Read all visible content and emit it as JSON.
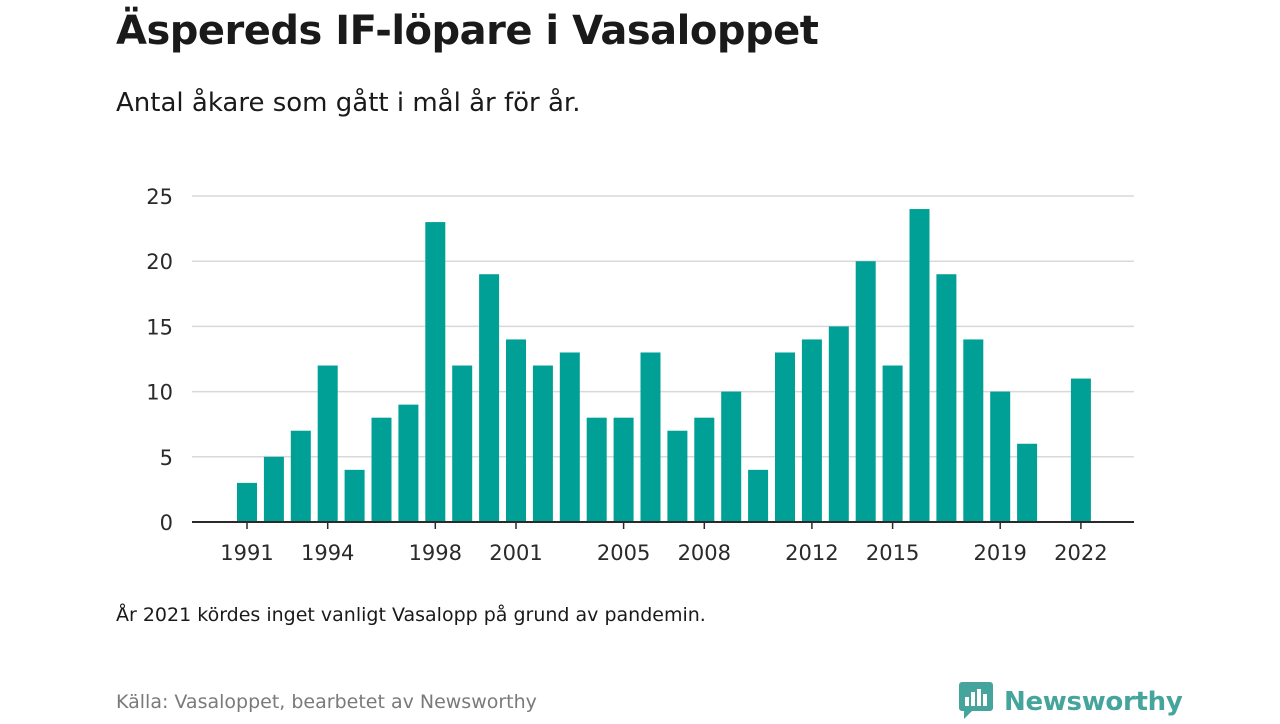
{
  "title": "Äspereds IF-löpare i Vasaloppet",
  "subtitle": "Antal åkare som gått i mål år för år.",
  "note": "År 2021 kördes inget vanligt Vasalopp på grund av pandemin.",
  "source": "Källa: Vasaloppet, bearbetet av Newsworthy",
  "brand": {
    "name": "Newsworthy",
    "icon": "newsworthy-logo-icon",
    "color": "#45a49b"
  },
  "colors": {
    "bar": "#00a097",
    "grid": "#d9d9d9",
    "axis": "#2a2a2a"
  },
  "chart_data": {
    "type": "bar",
    "title": "Äspereds IF-löpare i Vasaloppet",
    "xlabel": "",
    "ylabel": "",
    "x": [
      1991,
      1992,
      1993,
      1994,
      1995,
      1996,
      1997,
      1998,
      1999,
      2000,
      2001,
      2002,
      2003,
      2004,
      2005,
      2006,
      2007,
      2008,
      2009,
      2010,
      2011,
      2012,
      2013,
      2014,
      2015,
      2016,
      2017,
      2018,
      2019,
      2020,
      2021,
      2022
    ],
    "values": [
      3,
      5,
      7,
      12,
      4,
      8,
      9,
      23,
      12,
      19,
      14,
      12,
      13,
      8,
      8,
      13,
      7,
      8,
      10,
      4,
      13,
      14,
      15,
      20,
      12,
      24,
      19,
      14,
      10,
      6,
      null,
      11
    ],
    "x_tick_labels": [
      "1991",
      "1994",
      "1998",
      "2001",
      "2005",
      "2008",
      "2012",
      "2015",
      "2019",
      "2022"
    ],
    "y_ticks": [
      0,
      5,
      10,
      15,
      20,
      25
    ],
    "ylim": [
      0,
      25
    ],
    "grid": true
  }
}
